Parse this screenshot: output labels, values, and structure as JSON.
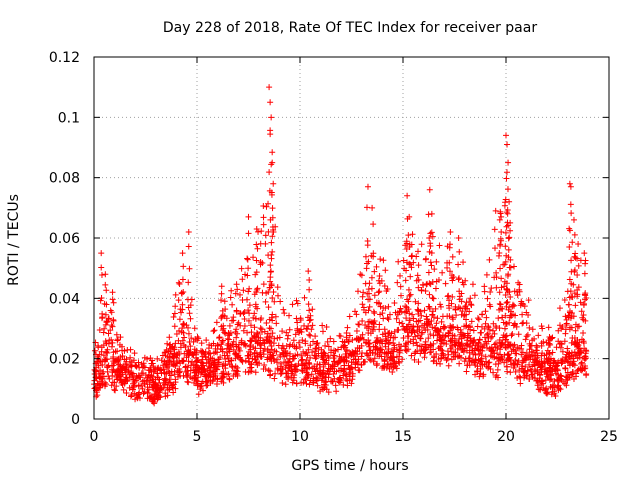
{
  "chart_data": {
    "type": "scatter",
    "title": "Day 228 of 2018, Rate Of TEC Index for receiver paar",
    "xlabel": "GPS time / hours",
    "ylabel": "ROTI / TECUs",
    "xlim": [
      0,
      25
    ],
    "ylim": [
      0,
      0.12
    ],
    "xticks": [
      0,
      5,
      10,
      15,
      20,
      25
    ],
    "yticks": [
      0,
      0.02,
      0.04,
      0.06,
      0.08,
      0.1,
      0.12
    ],
    "xtick_labels": [
      "0",
      "5",
      "10",
      "15",
      "20",
      "25"
    ],
    "ytick_labels": [
      "0",
      "0.02",
      "0.04",
      "0.06",
      "0.08",
      "0.1",
      "0.12"
    ],
    "grid": true,
    "marker": "+",
    "series_color": "#ff0000",
    "envelope": {
      "x": [
        0,
        0.3,
        0.5,
        0.8,
        1.0,
        1.5,
        2.0,
        3.0,
        3.5,
        4.0,
        4.3,
        4.6,
        5.0,
        5.5,
        6.0,
        6.5,
        7.0,
        7.3,
        7.6,
        8.0,
        8.3,
        8.6,
        8.9,
        9.2,
        9.6,
        10.0,
        10.4,
        10.8,
        11.2,
        11.6,
        12.0,
        12.5,
        13.0,
        13.3,
        13.6,
        14.0,
        14.5,
        15.0,
        15.3,
        15.6,
        16.0,
        16.3,
        16.6,
        17.0,
        17.5,
        17.8,
        18.2,
        18.6,
        19.0,
        19.5,
        20.0,
        20.3,
        20.6,
        21.0,
        21.5,
        22.0,
        22.5,
        23.0,
        23.2,
        23.5,
        23.9
      ],
      "base": [
        0.012,
        0.013,
        0.014,
        0.016,
        0.015,
        0.014,
        0.012,
        0.011,
        0.012,
        0.016,
        0.018,
        0.017,
        0.014,
        0.015,
        0.016,
        0.018,
        0.019,
        0.02,
        0.02,
        0.021,
        0.02,
        0.02,
        0.018,
        0.017,
        0.016,
        0.017,
        0.016,
        0.015,
        0.015,
        0.014,
        0.015,
        0.017,
        0.022,
        0.024,
        0.024,
        0.022,
        0.021,
        0.024,
        0.026,
        0.025,
        0.024,
        0.025,
        0.024,
        0.023,
        0.022,
        0.022,
        0.021,
        0.02,
        0.02,
        0.019,
        0.021,
        0.02,
        0.018,
        0.016,
        0.015,
        0.014,
        0.013,
        0.016,
        0.018,
        0.02,
        0.018
      ],
      "spread": [
        0.006,
        0.015,
        0.02,
        0.02,
        0.01,
        0.007,
        0.005,
        0.005,
        0.008,
        0.025,
        0.03,
        0.025,
        0.012,
        0.01,
        0.015,
        0.02,
        0.03,
        0.04,
        0.035,
        0.04,
        0.05,
        0.06,
        0.04,
        0.025,
        0.02,
        0.025,
        0.022,
        0.015,
        0.012,
        0.01,
        0.012,
        0.015,
        0.03,
        0.045,
        0.035,
        0.03,
        0.02,
        0.03,
        0.04,
        0.03,
        0.035,
        0.045,
        0.035,
        0.035,
        0.03,
        0.03,
        0.025,
        0.02,
        0.03,
        0.04,
        0.055,
        0.045,
        0.03,
        0.02,
        0.012,
        0.012,
        0.015,
        0.03,
        0.045,
        0.035,
        0.03
      ]
    },
    "spikes": [
      {
        "x": 0.35,
        "y": 0.055
      },
      {
        "x": 0.55,
        "y": 0.048
      },
      {
        "x": 0.9,
        "y": 0.042
      },
      {
        "x": 4.3,
        "y": 0.055
      },
      {
        "x": 4.6,
        "y": 0.062
      },
      {
        "x": 6.2,
        "y": 0.044
      },
      {
        "x": 7.5,
        "y": 0.067
      },
      {
        "x": 7.9,
        "y": 0.063
      },
      {
        "x": 8.5,
        "y": 0.11
      },
      {
        "x": 8.55,
        "y": 0.105
      },
      {
        "x": 8.6,
        "y": 0.1
      },
      {
        "x": 8.65,
        "y": 0.085
      },
      {
        "x": 8.7,
        "y": 0.078
      },
      {
        "x": 10.4,
        "y": 0.049
      },
      {
        "x": 13.3,
        "y": 0.077
      },
      {
        "x": 13.5,
        "y": 0.07
      },
      {
        "x": 15.2,
        "y": 0.074
      },
      {
        "x": 15.3,
        "y": 0.067
      },
      {
        "x": 16.3,
        "y": 0.076
      },
      {
        "x": 16.4,
        "y": 0.068
      },
      {
        "x": 17.3,
        "y": 0.062
      },
      {
        "x": 17.7,
        "y": 0.06
      },
      {
        "x": 19.5,
        "y": 0.069
      },
      {
        "x": 19.7,
        "y": 0.066
      },
      {
        "x": 20.0,
        "y": 0.094
      },
      {
        "x": 20.05,
        "y": 0.091
      },
      {
        "x": 20.1,
        "y": 0.085
      },
      {
        "x": 20.15,
        "y": 0.072
      },
      {
        "x": 20.2,
        "y": 0.065
      },
      {
        "x": 23.1,
        "y": 0.078
      },
      {
        "x": 23.15,
        "y": 0.077
      },
      {
        "x": 23.3,
        "y": 0.066
      },
      {
        "x": 23.5,
        "y": 0.058
      },
      {
        "x": 23.8,
        "y": 0.055
      }
    ]
  }
}
